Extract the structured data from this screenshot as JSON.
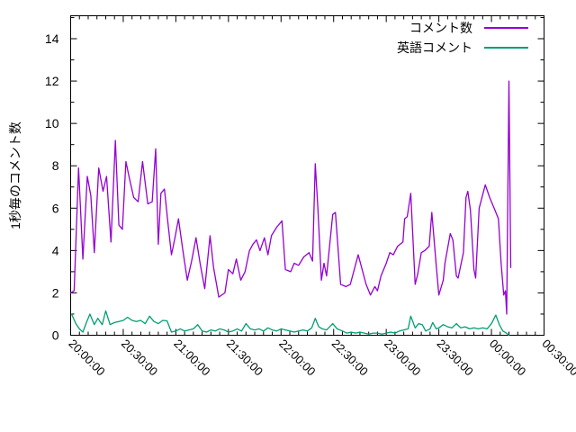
{
  "chart_data": {
    "type": "line",
    "title": "",
    "xlabel": "",
    "ylabel": "1秒毎のコメント数",
    "grid": false,
    "legend_position": "top-right-inside",
    "background_color": "#ffffff",
    "axis_color": "#000000",
    "x_axis": {
      "unit": "time (hh:mm:ss)",
      "start_minutes": 0,
      "end_minutes": 270,
      "major_tick_every_minutes": 30,
      "minor_tick_every_minutes": 5,
      "tick_labels": [
        "20:00:00",
        "20:30:00",
        "21:00:00",
        "21:30:00",
        "22:00:00",
        "22:30:00",
        "23:00:00",
        "23:30:00",
        "00:00:00",
        "00:30:00"
      ],
      "label_rotation_deg": 45
    },
    "y_axis": {
      "tick_labels": [
        "0",
        "2",
        "4",
        "6",
        "8",
        "10",
        "12",
        "14"
      ],
      "tick_values": [
        0,
        2,
        4,
        6,
        8,
        10,
        12,
        14
      ],
      "minor_tick_every": 1,
      "range": [
        0,
        15.1
      ]
    },
    "series": [
      {
        "name": "コメント数",
        "color": "#9400d3",
        "points": [
          [
            0,
            2.0
          ],
          [
            2,
            2.1
          ],
          [
            4.5,
            7.9
          ],
          [
            7,
            3.6
          ],
          [
            9.5,
            7.5
          ],
          [
            11.5,
            6.6
          ],
          [
            13.5,
            3.9
          ],
          [
            16,
            7.9
          ],
          [
            18.5,
            6.8
          ],
          [
            20.5,
            7.5
          ],
          [
            23,
            4.4
          ],
          [
            25.5,
            9.2
          ],
          [
            27.5,
            5.2
          ],
          [
            29.5,
            5.0
          ],
          [
            31.5,
            8.2
          ],
          [
            33.5,
            7.4
          ],
          [
            36,
            6.5
          ],
          [
            38.5,
            6.3
          ],
          [
            41,
            8.2
          ],
          [
            44,
            6.2
          ],
          [
            46.5,
            6.3
          ],
          [
            48.5,
            8.8
          ],
          [
            50,
            4.3
          ],
          [
            51.5,
            6.7
          ],
          [
            53.5,
            6.9
          ],
          [
            55.5,
            5.3
          ],
          [
            57.5,
            3.8
          ],
          [
            59.5,
            4.6
          ],
          [
            61.5,
            5.5
          ],
          [
            64,
            4.0
          ],
          [
            66.5,
            2.6
          ],
          [
            69,
            3.5
          ],
          [
            71.5,
            4.6
          ],
          [
            74,
            3.3
          ],
          [
            76.5,
            2.2
          ],
          [
            79.5,
            4.7
          ],
          [
            81.5,
            3.2
          ],
          [
            84.5,
            1.8
          ],
          [
            88,
            2.0
          ],
          [
            90,
            3.1
          ],
          [
            92.5,
            2.9
          ],
          [
            94.5,
            3.6
          ],
          [
            97,
            2.6
          ],
          [
            99.5,
            3.0
          ],
          [
            102,
            4.0
          ],
          [
            104,
            4.3
          ],
          [
            106,
            4.5
          ],
          [
            108,
            4.0
          ],
          [
            110.5,
            4.6
          ],
          [
            112.5,
            3.8
          ],
          [
            114.5,
            4.7
          ],
          [
            117.5,
            5.1
          ],
          [
            120.5,
            5.4
          ],
          [
            122.5,
            3.1
          ],
          [
            125.5,
            3.0
          ],
          [
            127.5,
            3.4
          ],
          [
            130,
            3.3
          ],
          [
            133,
            3.7
          ],
          [
            136,
            3.9
          ],
          [
            138,
            3.5
          ],
          [
            139.5,
            8.1
          ],
          [
            141,
            6.0
          ],
          [
            143,
            2.6
          ],
          [
            144.5,
            3.4
          ],
          [
            146,
            2.8
          ],
          [
            149.5,
            5.7
          ],
          [
            151,
            5.8
          ],
          [
            154,
            2.4
          ],
          [
            157,
            2.3
          ],
          [
            159.5,
            2.4
          ],
          [
            164,
            3.8
          ],
          [
            168.5,
            2.4
          ],
          [
            171,
            1.9
          ],
          [
            173.5,
            2.3
          ],
          [
            175,
            2.1
          ],
          [
            177,
            2.8
          ],
          [
            180,
            3.4
          ],
          [
            182,
            3.9
          ],
          [
            184,
            3.8
          ],
          [
            186.5,
            4.2
          ],
          [
            189.5,
            4.4
          ],
          [
            190.5,
            5.5
          ],
          [
            192,
            5.6
          ],
          [
            194,
            6.7
          ],
          [
            196.5,
            2.4
          ],
          [
            198,
            2.9
          ],
          [
            200,
            3.9
          ],
          [
            202,
            4.0
          ],
          [
            204.5,
            4.2
          ],
          [
            206,
            5.8
          ],
          [
            208.5,
            3.3
          ],
          [
            210,
            1.9
          ],
          [
            212.5,
            2.6
          ],
          [
            213.5,
            3.4
          ],
          [
            216.5,
            4.8
          ],
          [
            218,
            4.5
          ],
          [
            220,
            2.8
          ],
          [
            221,
            2.7
          ],
          [
            224,
            3.9
          ],
          [
            225.5,
            6.5
          ],
          [
            226.5,
            6.8
          ],
          [
            228,
            5.9
          ],
          [
            230,
            3.1
          ],
          [
            231,
            2.7
          ],
          [
            233,
            6.0
          ],
          [
            236.5,
            7.1
          ],
          [
            239,
            6.5
          ],
          [
            242,
            5.9
          ],
          [
            244,
            5.5
          ],
          [
            245.5,
            3.4
          ],
          [
            247,
            1.9
          ],
          [
            248,
            2.1
          ],
          [
            248.7,
            1.0
          ],
          [
            250,
            12.0
          ],
          [
            251,
            3.2
          ]
        ]
      },
      {
        "name": "英語コメント",
        "color": "#009e73",
        "points": [
          [
            0.5,
            1.0
          ],
          [
            3,
            0.55
          ],
          [
            5,
            0.3
          ],
          [
            7,
            0.15
          ],
          [
            9,
            0.6
          ],
          [
            11,
            1.0
          ],
          [
            13.5,
            0.5
          ],
          [
            15.5,
            0.8
          ],
          [
            18,
            0.5
          ],
          [
            20,
            1.15
          ],
          [
            22.5,
            0.5
          ],
          [
            25,
            0.6
          ],
          [
            27.5,
            0.65
          ],
          [
            30,
            0.7
          ],
          [
            32.5,
            0.85
          ],
          [
            35,
            0.7
          ],
          [
            37.5,
            0.65
          ],
          [
            40,
            0.7
          ],
          [
            42.5,
            0.55
          ],
          [
            45,
            0.9
          ],
          [
            47.5,
            0.65
          ],
          [
            50,
            0.55
          ],
          [
            52.5,
            0.7
          ],
          [
            55,
            0.68
          ],
          [
            57.5,
            0.15
          ],
          [
            60,
            0.2
          ],
          [
            62.5,
            0.3
          ],
          [
            65,
            0.2
          ],
          [
            67.5,
            0.25
          ],
          [
            70,
            0.3
          ],
          [
            72.5,
            0.5
          ],
          [
            75,
            0.2
          ],
          [
            77.5,
            0.15
          ],
          [
            80,
            0.25
          ],
          [
            82.5,
            0.2
          ],
          [
            85,
            0.3
          ],
          [
            87.5,
            0.25
          ],
          [
            90,
            0.15
          ],
          [
            92.5,
            0.2
          ],
          [
            95,
            0.3
          ],
          [
            97.5,
            0.2
          ],
          [
            100,
            0.55
          ],
          [
            102.5,
            0.3
          ],
          [
            105,
            0.25
          ],
          [
            107.5,
            0.3
          ],
          [
            110,
            0.2
          ],
          [
            112.5,
            0.35
          ],
          [
            115,
            0.25
          ],
          [
            117.5,
            0.2
          ],
          [
            120,
            0.3
          ],
          [
            122.5,
            0.25
          ],
          [
            125,
            0.2
          ],
          [
            127.5,
            0.15
          ],
          [
            130,
            0.2
          ],
          [
            132.5,
            0.25
          ],
          [
            135,
            0.2
          ],
          [
            137.5,
            0.35
          ],
          [
            139.5,
            0.8
          ],
          [
            141.5,
            0.4
          ],
          [
            143.5,
            0.3
          ],
          [
            146,
            0.25
          ],
          [
            149.5,
            0.55
          ],
          [
            152,
            0.3
          ],
          [
            155,
            0.2
          ],
          [
            157.5,
            0.1
          ],
          [
            160,
            0.15
          ],
          [
            162.5,
            0.1
          ],
          [
            165,
            0.15
          ],
          [
            167.5,
            0.1
          ],
          [
            170,
            0.05
          ],
          [
            172.5,
            0.1
          ],
          [
            175,
            0.1
          ],
          [
            177.5,
            0.05
          ],
          [
            180,
            0.1
          ],
          [
            182.5,
            0.15
          ],
          [
            185,
            0.1
          ],
          [
            187.5,
            0.2
          ],
          [
            190,
            0.25
          ],
          [
            192.5,
            0.3
          ],
          [
            194,
            0.9
          ],
          [
            196.5,
            0.35
          ],
          [
            198.5,
            0.55
          ],
          [
            200.5,
            0.5
          ],
          [
            202.5,
            0.2
          ],
          [
            205,
            0.3
          ],
          [
            206.5,
            0.6
          ],
          [
            208.5,
            0.3
          ],
          [
            210,
            0.35
          ],
          [
            212.5,
            0.5
          ],
          [
            215,
            0.4
          ],
          [
            217.5,
            0.35
          ],
          [
            220,
            0.55
          ],
          [
            222.5,
            0.35
          ],
          [
            225,
            0.4
          ],
          [
            227.5,
            0.3
          ],
          [
            230,
            0.35
          ],
          [
            232.5,
            0.3
          ],
          [
            235,
            0.35
          ],
          [
            237.5,
            0.3
          ],
          [
            240,
            0.55
          ],
          [
            242.5,
            0.95
          ],
          [
            244.5,
            0.5
          ],
          [
            246.5,
            0.2
          ],
          [
            248.5,
            0.1
          ],
          [
            250,
            0.0
          ]
        ]
      }
    ]
  },
  "legend": {
    "entries": [
      {
        "label": "コメント数",
        "color": "#9400d3"
      },
      {
        "label": "英語コメント",
        "color": "#009e73"
      }
    ]
  }
}
